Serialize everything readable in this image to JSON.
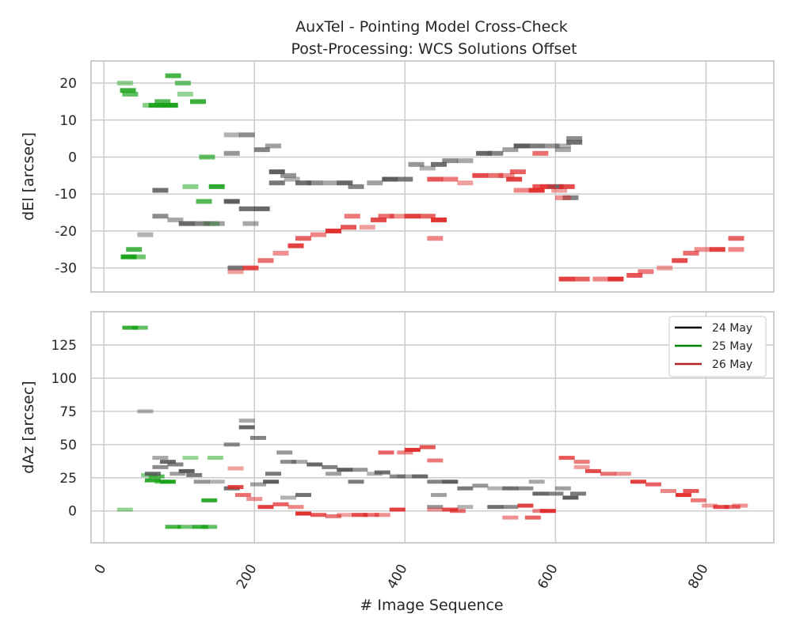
{
  "chart_data": {
    "type": "heatmap",
    "title": "AuxTel - Pointing Model Cross-Check",
    "subtitle": "Post-Processing: WCS Solutions Offset",
    "xlabel": "# Image Sequence",
    "x_ticks": [
      0,
      200,
      400,
      600,
      800
    ],
    "xlim": [
      -17,
      890
    ],
    "colors": {
      "24 May": "#555555",
      "25 May": "#16a016",
      "26 May": "#e02828"
    },
    "legend": {
      "placement": "upper right of lower panel",
      "entries": [
        {
          "label": "24 May",
          "color": "#000000"
        },
        {
          "label": "25 May",
          "color": "#008000"
        },
        {
          "label": "26 May",
          "color": "#b22222"
        }
      ]
    },
    "panels": [
      {
        "id": "dEl",
        "ylabel": "dEl [arcsec]",
        "ylim": [
          -36.5,
          26
        ],
        "y_ticks": [
          20,
          10,
          0,
          -10,
          -20,
          -30
        ],
        "series": [
          {
            "name": "25 May",
            "points": [
              [
                28,
                20
              ],
              [
                32,
                18
              ],
              [
                35,
                17
              ],
              [
                62,
                14
              ],
              [
                70,
                14
              ],
              [
                78,
                15
              ],
              [
                80,
                14
              ],
              [
                88,
                14
              ],
              [
                92,
                22
              ],
              [
                105,
                20
              ],
              [
                108,
                17
              ],
              [
                125,
                15
              ],
              [
                137,
                0
              ],
              [
                115,
                -8
              ],
              [
                150,
                -8
              ],
              [
                133,
                -12
              ],
              [
                143,
                -18
              ],
              [
                33,
                -27
              ],
              [
                40,
                -25
              ],
              [
                45,
                -27
              ]
            ]
          },
          {
            "name": "24 May",
            "points": [
              [
                55,
                -21
              ],
              [
                75,
                -9
              ],
              [
                75,
                -16
              ],
              [
                95,
                -17
              ],
              [
                110,
                -18
              ],
              [
                130,
                -18
              ],
              [
                150,
                -18
              ],
              [
                170,
                -12
              ],
              [
                175,
                -30
              ],
              [
                170,
                1
              ],
              [
                170,
                6
              ],
              [
                190,
                -14
              ],
              [
                190,
                6
              ],
              [
                195,
                -18
              ],
              [
                210,
                -14
              ],
              [
                210,
                2
              ],
              [
                225,
                3
              ],
              [
                230,
                -4
              ],
              [
                230,
                -7
              ],
              [
                245,
                -5
              ],
              [
                250,
                -6
              ],
              [
                265,
                -7
              ],
              [
                280,
                -7
              ],
              [
                300,
                -7
              ],
              [
                320,
                -7
              ],
              [
                335,
                -8
              ],
              [
                360,
                -7
              ],
              [
                380,
                -6
              ],
              [
                400,
                -6
              ],
              [
                415,
                -2
              ],
              [
                430,
                -3
              ],
              [
                445,
                -2
              ],
              [
                460,
                -1
              ],
              [
                480,
                -1
              ],
              [
                505,
                1
              ],
              [
                520,
                1
              ],
              [
                540,
                2
              ],
              [
                555,
                3
              ],
              [
                575,
                3
              ],
              [
                595,
                3
              ],
              [
                610,
                3
              ],
              [
                625,
                4
              ],
              [
                625,
                5
              ],
              [
                610,
                2
              ],
              [
                600,
                -8
              ],
              [
                620,
                -11
              ]
            ]
          },
          {
            "name": "26 May",
            "points": [
              [
                175,
                -31
              ],
              [
                195,
                -30
              ],
              [
                215,
                -28
              ],
              [
                235,
                -26
              ],
              [
                255,
                -24
              ],
              [
                265,
                -22
              ],
              [
                285,
                -21
              ],
              [
                305,
                -20
              ],
              [
                325,
                -19
              ],
              [
                330,
                -16
              ],
              [
                350,
                -19
              ],
              [
                365,
                -17
              ],
              [
                375,
                -16
              ],
              [
                390,
                -16
              ],
              [
                410,
                -16
              ],
              [
                430,
                -16
              ],
              [
                440,
                -22
              ],
              [
                445,
                -17
              ],
              [
                440,
                -6
              ],
              [
                460,
                -6
              ],
              [
                480,
                -7
              ],
              [
                500,
                -5
              ],
              [
                520,
                -5
              ],
              [
                535,
                -5
              ],
              [
                545,
                -6
              ],
              [
                550,
                -4
              ],
              [
                555,
                -9
              ],
              [
                575,
                -9
              ],
              [
                580,
                -8
              ],
              [
                590,
                -8
              ],
              [
                605,
                -9
              ],
              [
                615,
                -8
              ],
              [
                580,
                1
              ],
              [
                610,
                -11
              ],
              [
                615,
                -33
              ],
              [
                635,
                -33
              ],
              [
                660,
                -33
              ],
              [
                680,
                -33
              ],
              [
                705,
                -32
              ],
              [
                720,
                -31
              ],
              [
                745,
                -30
              ],
              [
                765,
                -28
              ],
              [
                780,
                -26
              ],
              [
                795,
                -25
              ],
              [
                815,
                -25
              ],
              [
                840,
                -22
              ],
              [
                840,
                -25
              ]
            ]
          }
        ]
      },
      {
        "id": "dAz",
        "ylabel": "dAz [arcsec]",
        "ylim": [
          -24,
          150
        ],
        "y_ticks": [
          125,
          100,
          75,
          50,
          25,
          0
        ],
        "series": [
          {
            "name": "25 May",
            "points": [
              [
                28,
                1
              ],
              [
                35,
                138
              ],
              [
                48,
                138
              ],
              [
                60,
                27
              ],
              [
                65,
                23
              ],
              [
                70,
                26
              ],
              [
                78,
                22
              ],
              [
                85,
                22
              ],
              [
                92,
                -12
              ],
              [
                108,
                -12
              ],
              [
                115,
                40
              ],
              [
                128,
                -12
              ],
              [
                140,
                -12
              ],
              [
                148,
                40
              ],
              [
                140,
                8
              ]
            ]
          },
          {
            "name": "24 May",
            "points": [
              [
                55,
                75
              ],
              [
                65,
                28
              ],
              [
                75,
                33
              ],
              [
                75,
                40
              ],
              [
                85,
                37
              ],
              [
                95,
                35
              ],
              [
                98,
                28
              ],
              [
                110,
                30
              ],
              [
                120,
                27
              ],
              [
                130,
                22
              ],
              [
                150,
                22
              ],
              [
                170,
                17
              ],
              [
                170,
                50
              ],
              [
                190,
                68
              ],
              [
                190,
                63
              ],
              [
                205,
                55
              ],
              [
                205,
                20
              ],
              [
                222,
                22
              ],
              [
                225,
                28
              ],
              [
                240,
                44
              ],
              [
                245,
                10
              ],
              [
                265,
                12
              ],
              [
                245,
                37
              ],
              [
                260,
                37
              ],
              [
                280,
                35
              ],
              [
                300,
                33
              ],
              [
                305,
                28
              ],
              [
                320,
                31
              ],
              [
                335,
                22
              ],
              [
                340,
                31
              ],
              [
                360,
                28
              ],
              [
                370,
                29
              ],
              [
                390,
                26
              ],
              [
                400,
                26
              ],
              [
                420,
                26
              ],
              [
                440,
                22
              ],
              [
                445,
                12
              ],
              [
                460,
                22
              ],
              [
                480,
                17
              ],
              [
                500,
                19
              ],
              [
                520,
                17
              ],
              [
                540,
                17
              ],
              [
                560,
                17
              ],
              [
                575,
                22
              ],
              [
                580,
                13
              ],
              [
                600,
                13
              ],
              [
                610,
                17
              ],
              [
                620,
                10
              ],
              [
                630,
                13
              ],
              [
                440,
                3
              ],
              [
                480,
                3
              ],
              [
                520,
                3
              ],
              [
                540,
                3
              ]
            ]
          },
          {
            "name": "26 May",
            "points": [
              [
                175,
                32
              ],
              [
                175,
                18
              ],
              [
                185,
                12
              ],
              [
                200,
                9
              ],
              [
                215,
                3
              ],
              [
                235,
                5
              ],
              [
                255,
                3
              ],
              [
                265,
                -2
              ],
              [
                285,
                -3
              ],
              [
                305,
                -4
              ],
              [
                320,
                -3
              ],
              [
                340,
                -3
              ],
              [
                355,
                -3
              ],
              [
                370,
                -3
              ],
              [
                390,
                1
              ],
              [
                375,
                44
              ],
              [
                400,
                44
              ],
              [
                410,
                46
              ],
              [
                430,
                48
              ],
              [
                440,
                38
              ],
              [
                440,
                1
              ],
              [
                460,
                1
              ],
              [
                470,
                0
              ],
              [
                540,
                -5
              ],
              [
                560,
                4
              ],
              [
                570,
                -5
              ],
              [
                580,
                0
              ],
              [
                590,
                0
              ],
              [
                615,
                40
              ],
              [
                635,
                37
              ],
              [
                635,
                33
              ],
              [
                650,
                30
              ],
              [
                670,
                28
              ],
              [
                690,
                28
              ],
              [
                710,
                22
              ],
              [
                730,
                20
              ],
              [
                750,
                15
              ],
              [
                770,
                12
              ],
              [
                780,
                15
              ],
              [
                790,
                8
              ],
              [
                805,
                4
              ],
              [
                820,
                3
              ],
              [
                835,
                3
              ],
              [
                845,
                4
              ]
            ]
          }
        ]
      }
    ]
  }
}
